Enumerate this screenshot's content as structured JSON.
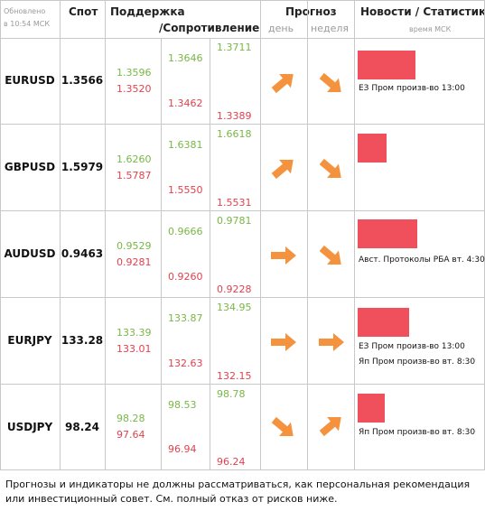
{
  "header": {
    "updated_line1": "Обновлено",
    "updated_line2": "в 10:54 МСК",
    "spot": "Спот",
    "support": "Поддержка",
    "resistance": "/Сопротивление",
    "forecast": "Прогноз",
    "day": "день",
    "week": "неделя",
    "news": "Новости / Статистика",
    "msk_time": "время МСК"
  },
  "colors": {
    "support": "#7ab648",
    "resistance": "#e0424e",
    "arrow": "#f5923e",
    "bar": "#f0505b"
  },
  "rows": [
    {
      "pair": "EURUSD",
      "spot": "1.3566",
      "s1": "1.3596",
      "r1": "1.3520",
      "s2": "1.3646",
      "r2": "1.3462",
      "s3": "1.3711",
      "r3": "1.3389",
      "day_arrow": "arrow-up-right-icon",
      "week_arrow": "arrow-down-right-icon",
      "bar_fraction": 0.8,
      "news": [
        "ЕЗ Пром произв-во 13:00"
      ]
    },
    {
      "pair": "GBPUSD",
      "spot": "1.5979",
      "s1": "1.6260",
      "r1": "1.5787",
      "s2": "1.6381",
      "r2": "1.5550",
      "s3": "1.6618",
      "r3": "1.5531",
      "day_arrow": "arrow-up-right-icon",
      "week_arrow": "arrow-down-right-icon",
      "bar_fraction": 0.4,
      "news": []
    },
    {
      "pair": "AUDUSD",
      "spot": "0.9463",
      "s1": "0.9529",
      "r1": "0.9281",
      "s2": "0.9666",
      "r2": "0.9260",
      "s3": "0.9781",
      "r3": "0.9228",
      "day_arrow": "arrow-right-icon",
      "week_arrow": "arrow-down-right-icon",
      "bar_fraction": 0.82,
      "news": [
        "Авст. Протоколы РБА вт. 4:30"
      ]
    },
    {
      "pair": "EURJPY",
      "spot": "133.28",
      "s1": "133.39",
      "r1": "133.01",
      "s2": "133.87",
      "r2": "132.63",
      "s3": "134.95",
      "r3": "132.15",
      "day_arrow": "arrow-right-icon",
      "week_arrow": "arrow-right-icon",
      "bar_fraction": 0.71,
      "news": [
        "ЕЗ Пром произв-во 13:00",
        "Яп Пром произв-во вт. 8:30"
      ]
    },
    {
      "pair": "USDJPY",
      "spot": "98.24",
      "s1": "98.28",
      "r1": "97.64",
      "s2": "98.53",
      "r2": "96.94",
      "s3": "98.78",
      "r3": "96.24",
      "day_arrow": "arrow-down-right-icon",
      "week_arrow": "arrow-up-right-icon",
      "bar_fraction": 0.38,
      "news": [
        "Яп Пром произв-во вт. 8:30"
      ]
    }
  ],
  "footer": "Прогнозы и индикаторы не должны рассматриваться, как персональная рекомендация или инвестиционный совет. См. полный отказ от рисков ниже."
}
